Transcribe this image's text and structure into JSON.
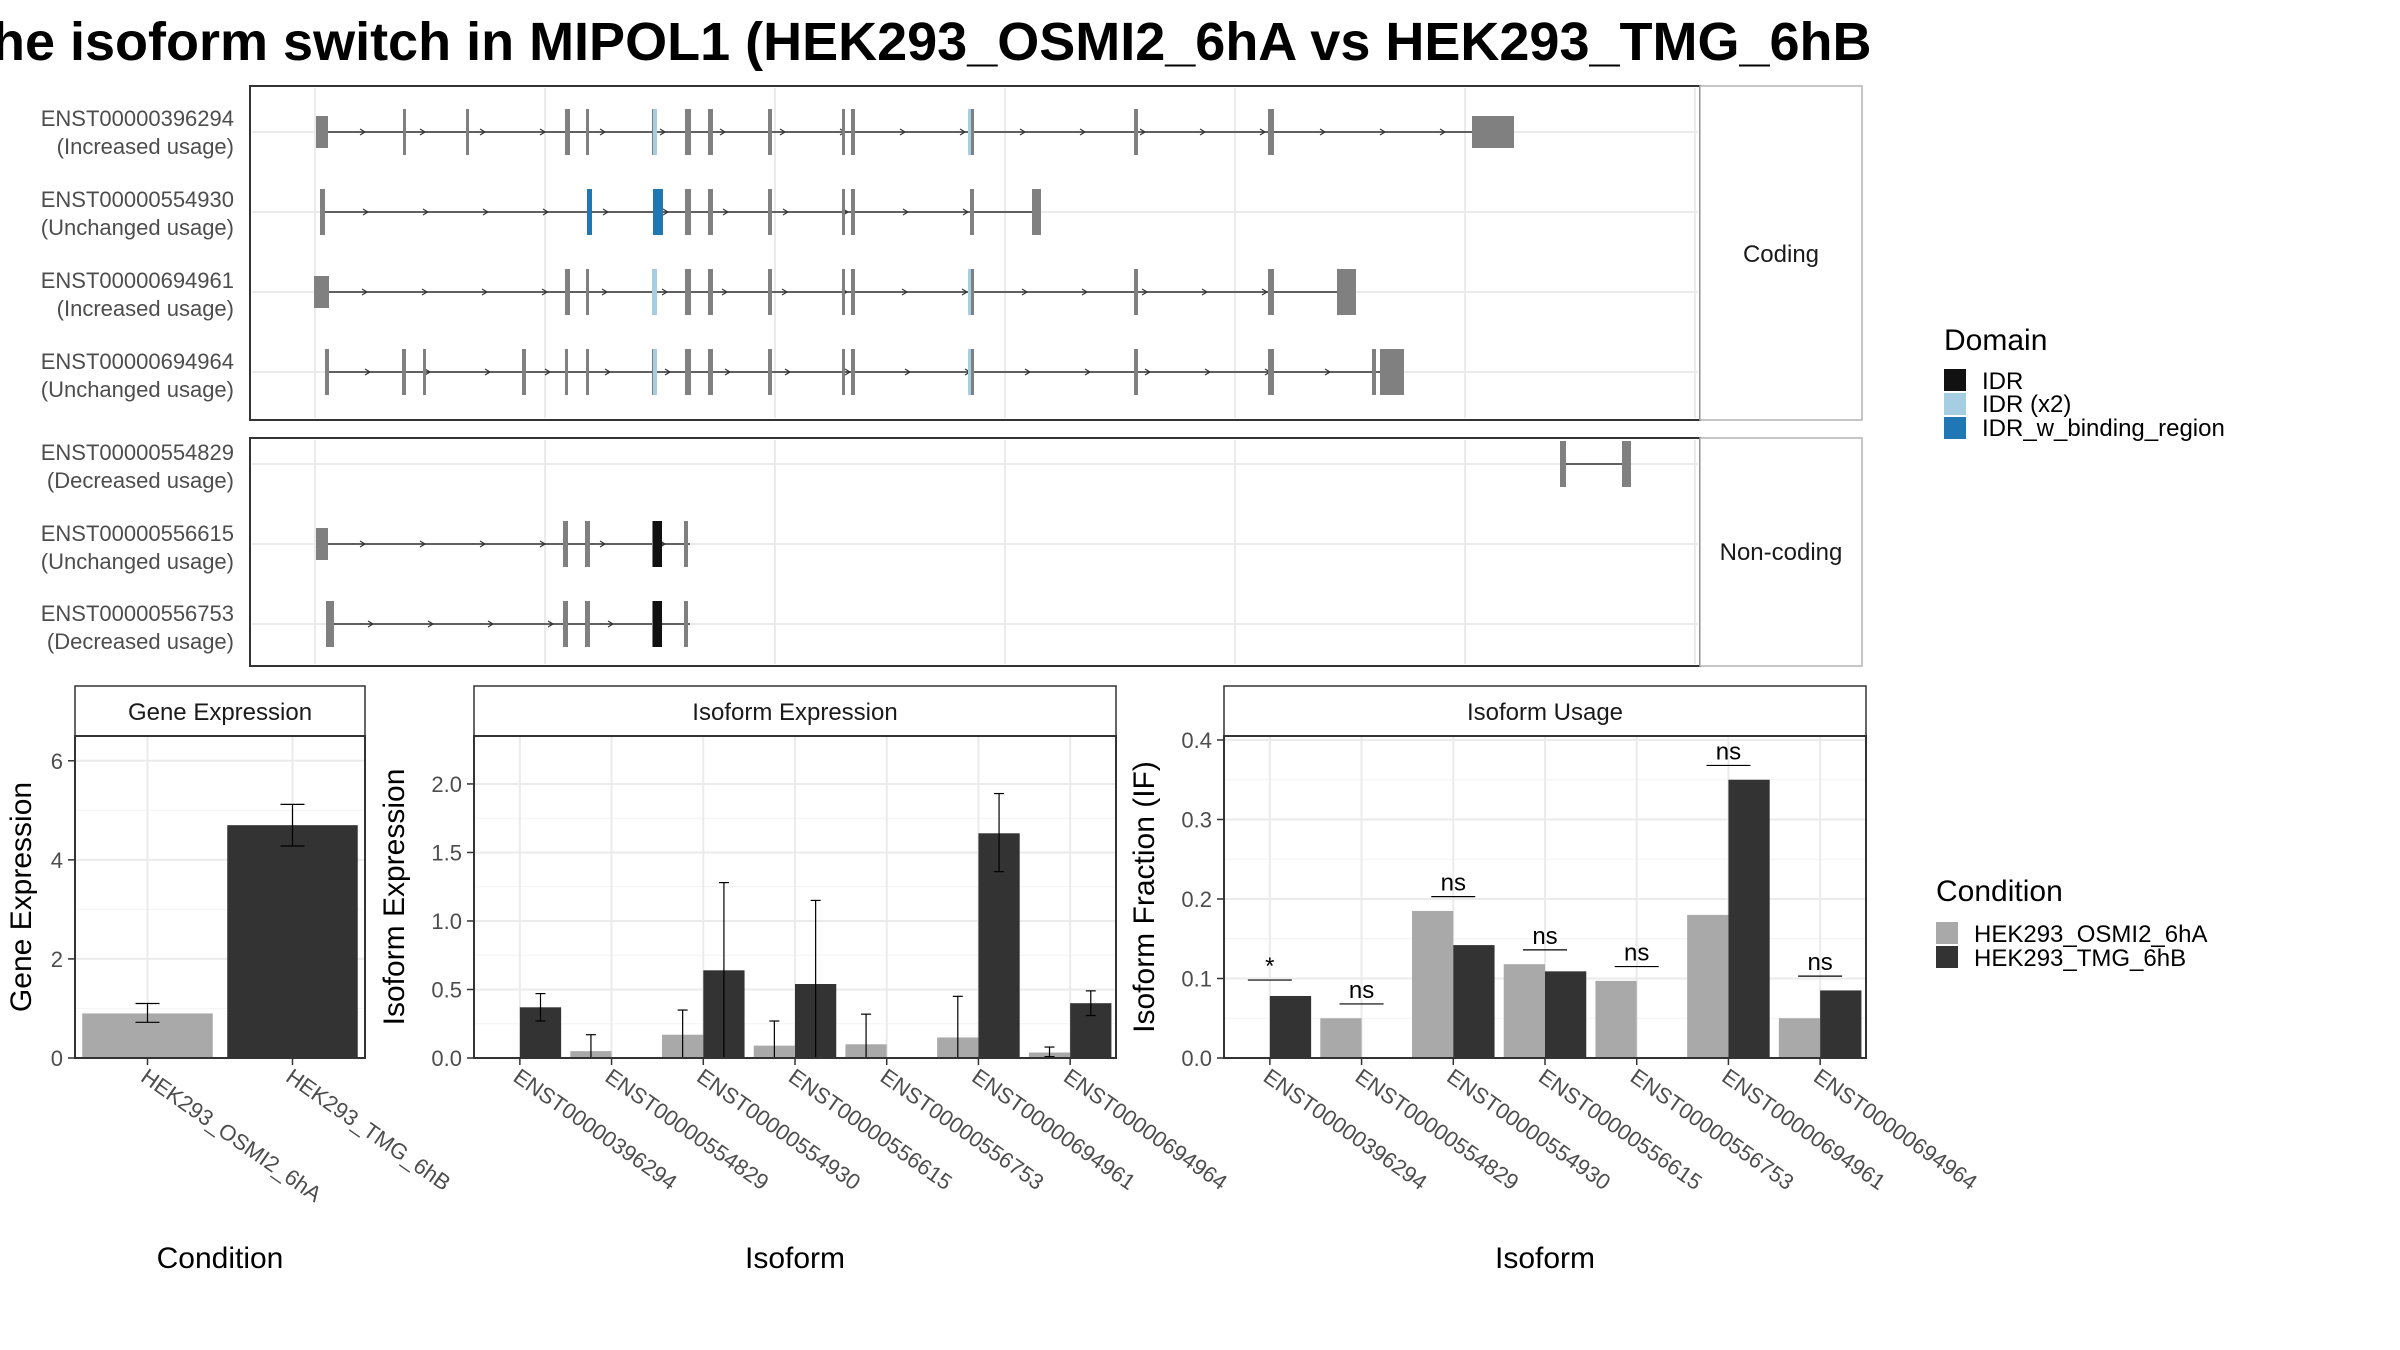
{
  "title": "he isoform switch in MIPOL1 (HEK293_OSMI2_6hA vs HEK293_TMG_6hB",
  "colors": {
    "cond_a": "#a9a9a9",
    "cond_b": "#333333",
    "idr": "#111111",
    "idr_x2": "#a6cee3",
    "idr_binding": "#1f78b4",
    "exon": "#808080",
    "grid": "#ebebeb"
  },
  "structure": {
    "panels": [
      {
        "strip": "Coding",
        "isoforms": [
          {
            "id": "ENST00000396294",
            "usage": "(Increased usage)"
          },
          {
            "id": "ENST00000554930",
            "usage": "(Unchanged usage)"
          },
          {
            "id": "ENST00000694961",
            "usage": "(Increased usage)"
          },
          {
            "id": "ENST00000694964",
            "usage": "(Unchanged usage)"
          }
        ]
      },
      {
        "strip": "Non-coding",
        "isoforms": [
          {
            "id": "ENST00000554829",
            "usage": "(Decreased usage)"
          },
          {
            "id": "ENST00000556615",
            "usage": "(Unchanged usage)"
          },
          {
            "id": "ENST00000556753",
            "usage": "(Decreased usage)"
          }
        ]
      }
    ]
  },
  "legends": {
    "domain": {
      "title": "Domain",
      "items": [
        {
          "label": "IDR",
          "color": "#111111"
        },
        {
          "label": "IDR (x2)",
          "color": "#a6cee3"
        },
        {
          "label": "IDR_w_binding_region",
          "color": "#1f78b4"
        }
      ]
    },
    "condition": {
      "title": "Condition",
      "items": [
        {
          "label": "HEK293_OSMI2_6hA",
          "color": "#a9a9a9"
        },
        {
          "label": "HEK293_TMG_6hB",
          "color": "#333333"
        }
      ]
    }
  },
  "chart_data": [
    {
      "type": "bar",
      "title": "Gene Expression",
      "xlabel": "Condition",
      "ylabel": "Gene Expression",
      "ylim": [
        0,
        6.5
      ],
      "yticks": [
        "0",
        "2",
        "4",
        "6"
      ],
      "categories": [
        "HEK293_OSMI2_6hA",
        "HEK293_TMG_6hB"
      ],
      "values": [
        0.9,
        4.7
      ],
      "err_low": [
        0.72,
        4.28
      ],
      "err_high": [
        1.1,
        5.12
      ]
    },
    {
      "type": "bar",
      "title": "Isoform Expression",
      "xlabel": "Isoform",
      "ylabel": "Isoform Expression",
      "ylim": [
        0,
        2.35
      ],
      "yticks": [
        "0.0",
        "0.5",
        "1.0",
        "1.5",
        "2.0"
      ],
      "categories": [
        "ENST00000396294",
        "ENST00000554829",
        "ENST00000554930",
        "ENST00000556615",
        "ENST00000556753",
        "ENST00000694961",
        "ENST00000694964"
      ],
      "series": [
        {
          "name": "HEK293_OSMI2_6hA",
          "values": [
            0.0,
            0.05,
            0.17,
            0.09,
            0.1,
            0.15,
            0.04
          ],
          "err_low": [
            0.0,
            0.0,
            0.0,
            0.0,
            0.0,
            0.0,
            0.01
          ],
          "err_high": [
            0.0,
            0.17,
            0.35,
            0.27,
            0.32,
            0.45,
            0.08
          ]
        },
        {
          "name": "HEK293_TMG_6hB",
          "values": [
            0.37,
            0.0,
            0.64,
            0.54,
            0.0,
            1.64,
            0.4
          ],
          "err_low": [
            0.27,
            0.0,
            0.0,
            0.0,
            0.0,
            1.36,
            0.31
          ],
          "err_high": [
            0.47,
            0.0,
            1.28,
            1.15,
            0.0,
            1.93,
            0.49
          ]
        }
      ]
    },
    {
      "type": "bar",
      "title": "Isoform Usage",
      "xlabel": "Isoform",
      "ylabel": "Isoform Fraction (IF)",
      "ylim": [
        0,
        0.405
      ],
      "yticks": [
        "0.0",
        "0.1",
        "0.2",
        "0.3",
        "0.4"
      ],
      "categories": [
        "ENST00000396294",
        "ENST00000554829",
        "ENST00000554930",
        "ENST00000556615",
        "ENST00000556753",
        "ENST00000694961",
        "ENST00000694964"
      ],
      "series": [
        {
          "name": "HEK293_OSMI2_6hA",
          "values": [
            0.0,
            0.05,
            0.185,
            0.118,
            0.097,
            0.18,
            0.05
          ]
        },
        {
          "name": "HEK293_TMG_6hB",
          "values": [
            0.078,
            0.0,
            0.142,
            0.109,
            0.0,
            0.35,
            0.085
          ]
        }
      ],
      "significance": [
        "*",
        "ns",
        "ns",
        "ns",
        "ns",
        "ns",
        "ns"
      ],
      "sig_y": [
        0.098,
        0.068,
        0.203,
        0.136,
        0.115,
        0.368,
        0.103
      ]
    }
  ]
}
